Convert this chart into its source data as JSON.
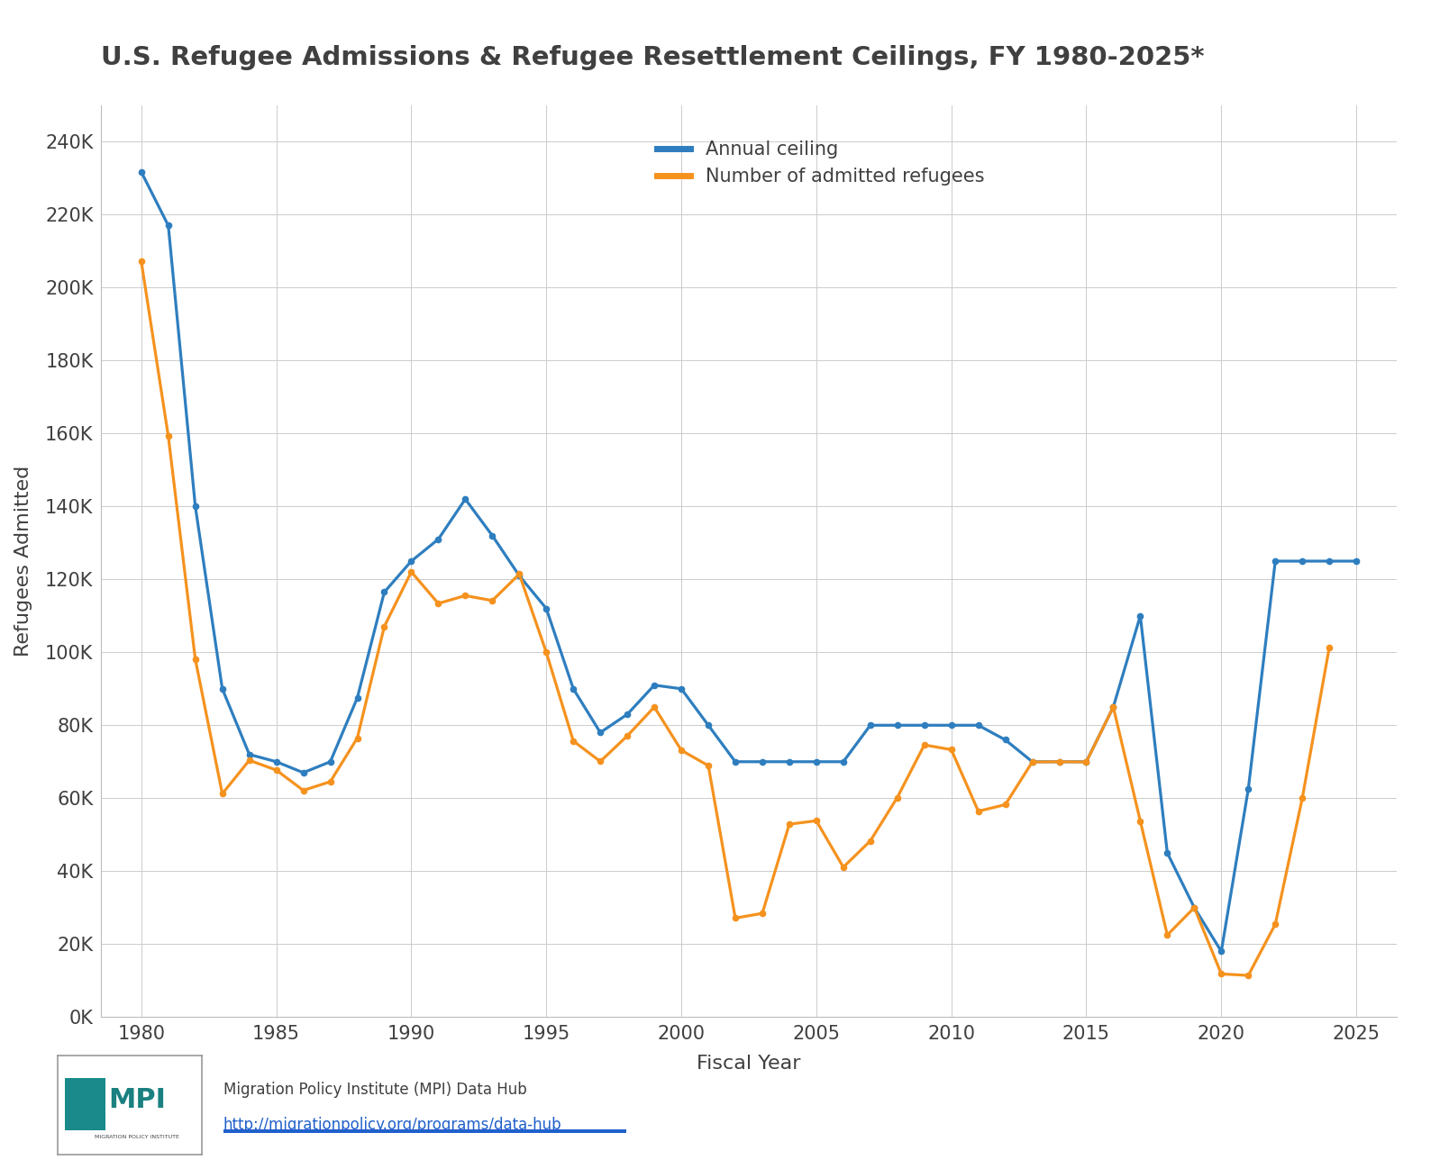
{
  "title": "U.S. Refugee Admissions & Refugee Resettlement Ceilings, FY 1980-2025*",
  "xlabel": "Fiscal Year",
  "ylabel": "Refugees Admitted",
  "legend_labels": [
    "Annual ceiling",
    "Number of admitted refugees"
  ],
  "ceiling_color": "#2e7ebf",
  "admitted_color": "#f5921e",
  "years_ceiling": [
    1980,
    1981,
    1982,
    1983,
    1984,
    1985,
    1986,
    1987,
    1988,
    1989,
    1990,
    1991,
    1992,
    1993,
    1994,
    1995,
    1996,
    1997,
    1998,
    1999,
    2000,
    2001,
    2002,
    2003,
    2004,
    2005,
    2006,
    2007,
    2008,
    2009,
    2010,
    2011,
    2012,
    2013,
    2014,
    2015,
    2016,
    2017,
    2018,
    2019,
    2020,
    2021,
    2022,
    2023,
    2024,
    2025
  ],
  "ceiling_values": [
    231700,
    217000,
    140000,
    90000,
    72000,
    70000,
    67000,
    70000,
    87500,
    116500,
    125000,
    131000,
    142000,
    132000,
    121000,
    112000,
    90000,
    78000,
    83000,
    91000,
    90000,
    80000,
    70000,
    70000,
    70000,
    70000,
    70000,
    80000,
    80000,
    80000,
    80000,
    80000,
    76000,
    70000,
    70000,
    70000,
    85000,
    110000,
    45000,
    30000,
    18000,
    62500,
    125000,
    125000,
    125000,
    125000
  ],
  "years_admitted": [
    1980,
    1981,
    1982,
    1983,
    1984,
    1985,
    1986,
    1987,
    1988,
    1989,
    1990,
    1991,
    1992,
    1993,
    1994,
    1995,
    1996,
    1997,
    1998,
    1999,
    2000,
    2001,
    2002,
    2003,
    2004,
    2005,
    2006,
    2007,
    2008,
    2009,
    2010,
    2011,
    2012,
    2013,
    2014,
    2015,
    2016,
    2017,
    2018,
    2019,
    2020,
    2021,
    2022,
    2023,
    2024
  ],
  "admitted_values": [
    207116,
    159252,
    98096,
    61218,
    70393,
    67704,
    62146,
    64528,
    76483,
    107070,
    122066,
    113389,
    115548,
    114181,
    121434,
    99974,
    75686,
    70085,
    77084,
    85006,
    73147,
    68925,
    27131,
    28422,
    52873,
    53813,
    41094,
    48282,
    60191,
    74602,
    73311,
    56424,
    58238,
    69926,
    69987,
    69933,
    84995,
    53716,
    22491,
    30000,
    11814,
    11411,
    25465,
    60014,
    101376
  ],
  "ylim": [
    0,
    250000
  ],
  "yticks": [
    0,
    20000,
    40000,
    60000,
    80000,
    100000,
    120000,
    140000,
    160000,
    180000,
    200000,
    220000,
    240000
  ],
  "ytick_labels": [
    "0K",
    "20K",
    "40K",
    "60K",
    "80K",
    "100K",
    "120K",
    "140K",
    "160K",
    "180K",
    "200K",
    "220K",
    "240K"
  ],
  "xlim": [
    1978.5,
    2026.5
  ],
  "xticks": [
    1980,
    1985,
    1990,
    1995,
    2000,
    2005,
    2010,
    2015,
    2020,
    2025
  ],
  "background_color": "#ffffff",
  "grid_color": "#cccccc",
  "title_color": "#404040",
  "axis_label_color": "#404040",
  "tick_label_color": "#404040",
  "line_width": 2.3,
  "marker_size": 4.5,
  "footer_text": "Migration Policy Institute (MPI) Data Hub",
  "footer_url": "http://migrationpolicy.org/programs/data-hub"
}
